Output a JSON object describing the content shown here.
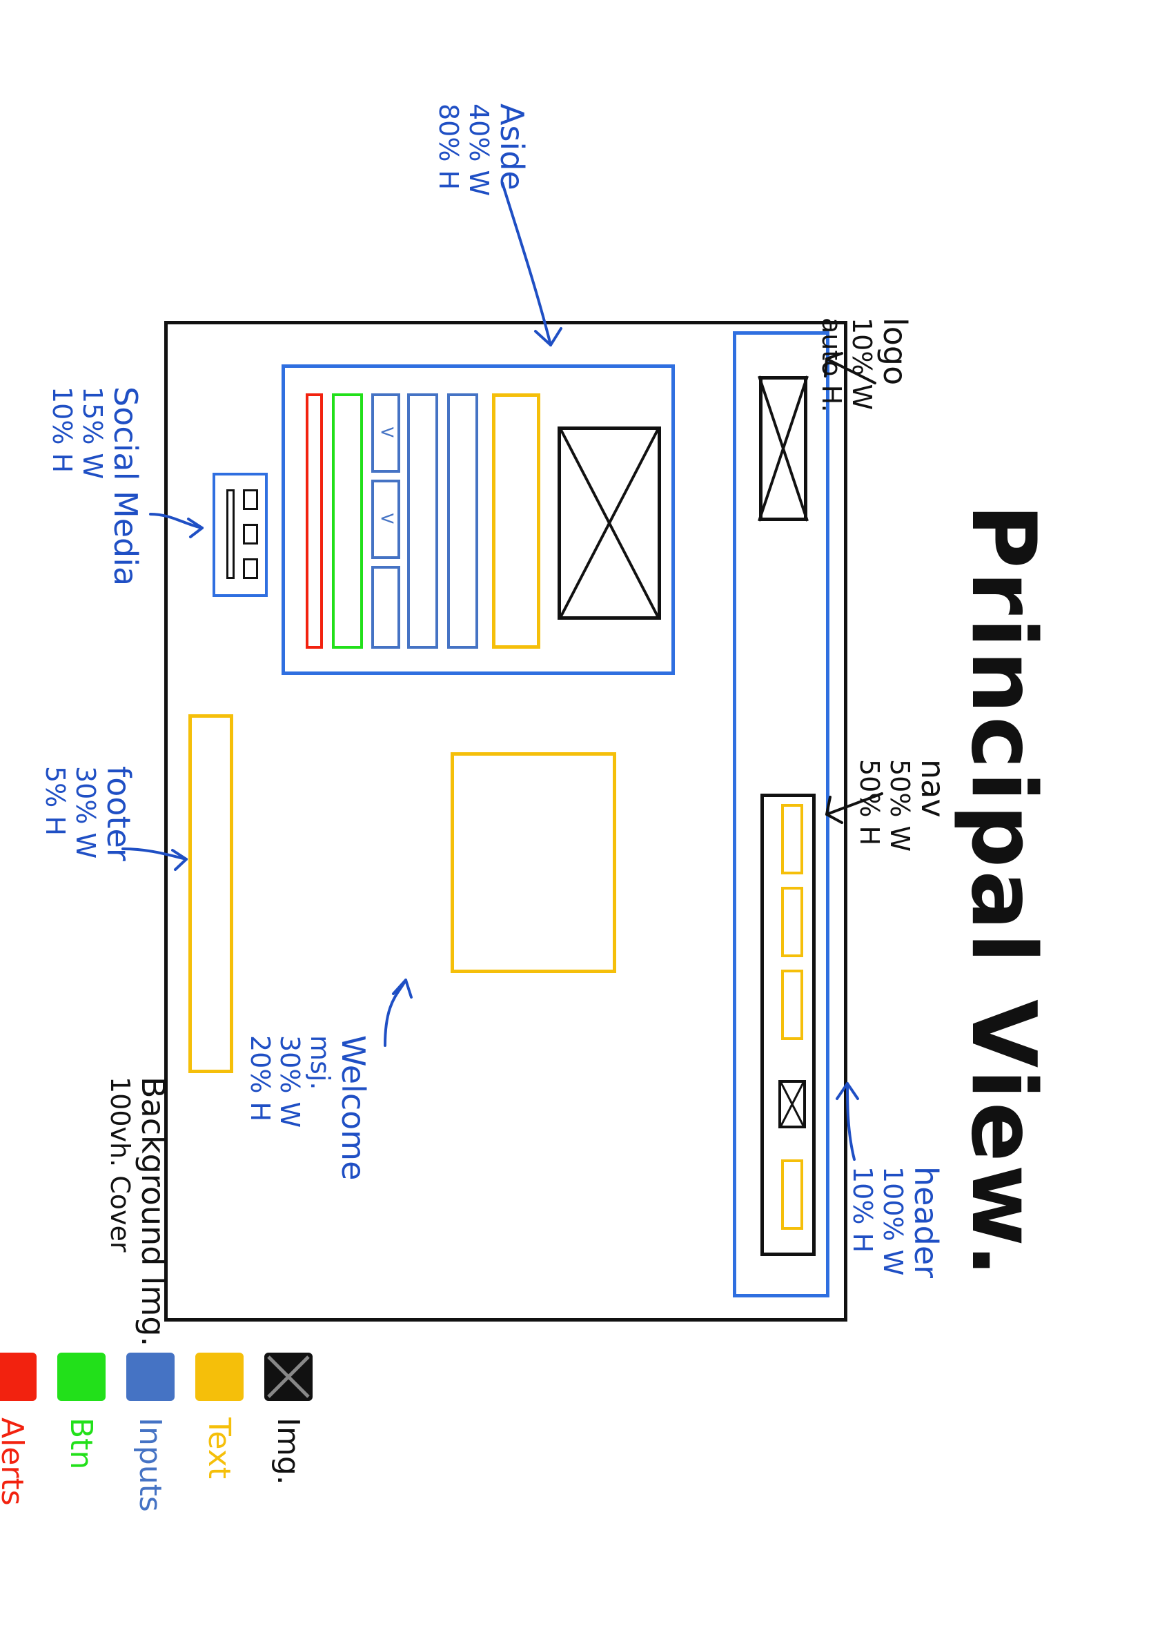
{
  "title": "Principal View.",
  "annotations": {
    "logo": {
      "name": "logo",
      "l2": "10% W",
      "l3": "auto H."
    },
    "nav": {
      "name": "nav",
      "l2": "50% W",
      "l3": "50% H"
    },
    "header": {
      "name": "header",
      "l2": "100% W",
      "l3": "10% H"
    },
    "aside": {
      "name": "Aside",
      "l2": "40% W",
      "l3": "80% H"
    },
    "social": {
      "name": "Social Media",
      "l2": "15% W",
      "l3": "10% H"
    },
    "welcome": {
      "name": "Welcome",
      "l1b": "msj.",
      "l2": "30% W",
      "l3": "20% H"
    },
    "footer": {
      "name": "footer",
      "l2": "30% W",
      "l3": "5% H"
    },
    "background": {
      "l1": "Background Img.",
      "l2": "100vh. Cover"
    }
  },
  "form": {
    "select_chevron_1": "<",
    "select_chevron_2": "<"
  },
  "legend": [
    {
      "label": "Img.",
      "color": "#111111"
    },
    {
      "label": "Text",
      "color": "#f5bf0a"
    },
    {
      "label": "Inputs",
      "color": "#4573c4"
    },
    {
      "label": "Btn",
      "color": "#22e01a"
    },
    {
      "label": "Alerts",
      "color": "#f2220f"
    }
  ],
  "colors": {
    "frame": "#111111",
    "container": "#2f6fe0",
    "text": "#f5bf0a",
    "inputs": "#4573c4",
    "btn": "#22e01a",
    "alerts": "#f2220f",
    "annotation": "#1f4fc4"
  }
}
